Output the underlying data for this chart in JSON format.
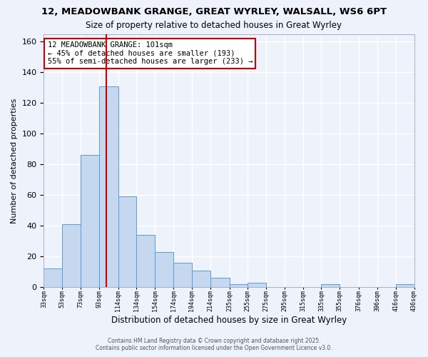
{
  "title": "12, MEADOWBANK GRANGE, GREAT WYRLEY, WALSALL, WS6 6PT",
  "subtitle": "Size of property relative to detached houses in Great Wyrley",
  "xlabel": "Distribution of detached houses by size in Great Wyrley",
  "ylabel": "Number of detached properties",
  "bar_color": "#c5d8f0",
  "bar_edge_color": "#5b9bd5",
  "background_color": "#eef2fb",
  "grid_color": "#ffffff",
  "vline_x": 101,
  "vline_color": "#cc0000",
  "annotation_title": "12 MEADOWBANK GRANGE: 101sqm",
  "annotation_line1": "← 45% of detached houses are smaller (193)",
  "annotation_line2": "55% of semi-detached houses are larger (233) →",
  "bin_edges": [
    33,
    53,
    73,
    93,
    114,
    134,
    154,
    174,
    194,
    214,
    235,
    255,
    275,
    295,
    315,
    335,
    355,
    376,
    396,
    416,
    436
  ],
  "bin_labels": [
    "33sqm",
    "53sqm",
    "73sqm",
    "93sqm",
    "114sqm",
    "134sqm",
    "154sqm",
    "174sqm",
    "194sqm",
    "214sqm",
    "235sqm",
    "255sqm",
    "275sqm",
    "295sqm",
    "315sqm",
    "335sqm",
    "355sqm",
    "376sqm",
    "396sqm",
    "416sqm",
    "436sqm"
  ],
  "counts": [
    12,
    41,
    86,
    131,
    59,
    34,
    23,
    16,
    11,
    6,
    2,
    3,
    0,
    0,
    0,
    2,
    0,
    0,
    0,
    2
  ],
  "ylim": [
    0,
    165
  ],
  "yticks": [
    0,
    20,
    40,
    60,
    80,
    100,
    120,
    140,
    160
  ],
  "footer1": "Contains HM Land Registry data © Crown copyright and database right 2025.",
  "footer2": "Contains public sector information licensed under the Open Government Licence v3.0."
}
